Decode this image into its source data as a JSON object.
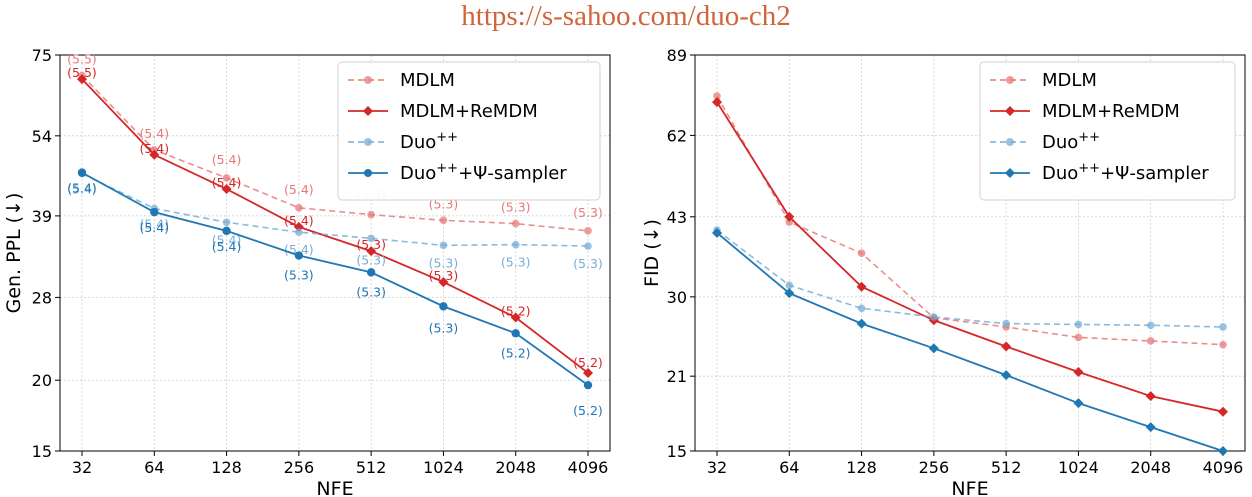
{
  "banner": "https://s-sahoo.com/duo-ch2",
  "colors": {
    "mdlm": "#d62728",
    "mdlm_light": "#e8797a",
    "duo": "#1f77b4",
    "duo_light": "#78aed6"
  },
  "chart_data": [
    {
      "type": "line",
      "xlabel": "NFE",
      "ylabel": "Gen. PPL (↓)",
      "yscale": "log",
      "ylim": [
        15,
        75
      ],
      "yticks": [
        15,
        20,
        28,
        39,
        54,
        75
      ],
      "categories": [
        "32",
        "64",
        "128",
        "256",
        "512",
        "1024",
        "2048",
        "4096"
      ],
      "grid": true,
      "legend_position": "top-right",
      "series": [
        {
          "name": "MDLM",
          "legend_label": "MDLM",
          "style": "dashed-circle",
          "color": "mdlm_light",
          "values": [
            69.0,
            51.0,
            45.5,
            40.3,
            39.2,
            38.3,
            37.8,
            36.7
          ],
          "labels": [
            "(5.5)",
            "(5.4)",
            "(5.4)",
            "(5.4)",
            "(5.3)",
            "(5.3)",
            "(5.3)",
            "(5.3)"
          ]
        },
        {
          "name": "MDLM+ReMDM",
          "legend_label": "MDLM+ReMDM",
          "style": "solid-diamond",
          "color": "mdlm",
          "values": [
            68.0,
            50.0,
            43.5,
            37.3,
            33.8,
            29.8,
            25.8,
            20.6
          ],
          "labels": [
            "(5.5)",
            "(5.4)",
            "(5.4)",
            "(5.4)",
            "(5.3)",
            "(5.3)",
            "(5.2)",
            "(5.2)"
          ]
        },
        {
          "name": "Duo++",
          "legend_base": "Duo",
          "legend_sup": "++",
          "legend_tail": "",
          "style": "dashed-circle",
          "color": "duo_light",
          "values": [
            46.3,
            40.2,
            38.0,
            36.5,
            35.6,
            34.6,
            34.7,
            34.5
          ],
          "labels": [
            "(5.4)",
            "(5.4)",
            "(5.4)",
            "(5.4)",
            "(5.3)",
            "(5.3)",
            "(5.3)",
            "(5.3)"
          ]
        },
        {
          "name": "Duo++ +Ψ-sampler",
          "legend_base": "Duo",
          "legend_sup": "++",
          "legend_tail": "+Ψ-sampler",
          "style": "solid-circle",
          "color": "duo",
          "values": [
            46.5,
            39.6,
            36.7,
            33.2,
            31.0,
            27.0,
            24.2,
            19.6
          ],
          "labels": [
            "(5.4)",
            "(5.4)",
            "(5.4)",
            "(5.3)",
            "(5.3)",
            "(5.3)",
            "(5.2)",
            "(5.2)"
          ]
        }
      ]
    },
    {
      "type": "line",
      "xlabel": "NFE",
      "ylabel": "FID (↓)",
      "yscale": "log",
      "ylim": [
        15,
        89
      ],
      "yticks": [
        15,
        21,
        30,
        43,
        62,
        89
      ],
      "categories": [
        "32",
        "64",
        "128",
        "256",
        "512",
        "1024",
        "2048",
        "4096"
      ],
      "grid": true,
      "legend_position": "top-right",
      "series": [
        {
          "name": "MDLM",
          "legend_label": "MDLM",
          "style": "dashed-circle",
          "color": "mdlm_light",
          "values": [
            74.0,
            42.0,
            36.5,
            27.3,
            26.2,
            25.0,
            24.6,
            24.2
          ]
        },
        {
          "name": "MDLM+ReMDM",
          "legend_label": "MDLM+ReMDM",
          "style": "solid-diamond",
          "color": "mdlm",
          "values": [
            72.0,
            43.0,
            31.4,
            27.0,
            24.0,
            21.4,
            19.2,
            17.9
          ]
        },
        {
          "name": "Duo++",
          "legend_base": "Duo",
          "legend_sup": "++",
          "legend_tail": "",
          "style": "dashed-circle",
          "color": "duo_light",
          "values": [
            40.5,
            31.6,
            28.5,
            27.4,
            26.6,
            26.5,
            26.4,
            26.2
          ]
        },
        {
          "name": "Duo++ +Ψ-sampler",
          "legend_base": "Duo",
          "legend_sup": "++",
          "legend_tail": "+Ψ-sampler",
          "style": "solid-diamond",
          "color": "duo",
          "values": [
            40.0,
            30.5,
            26.6,
            23.8,
            21.1,
            18.6,
            16.7,
            15.0
          ]
        }
      ]
    }
  ]
}
